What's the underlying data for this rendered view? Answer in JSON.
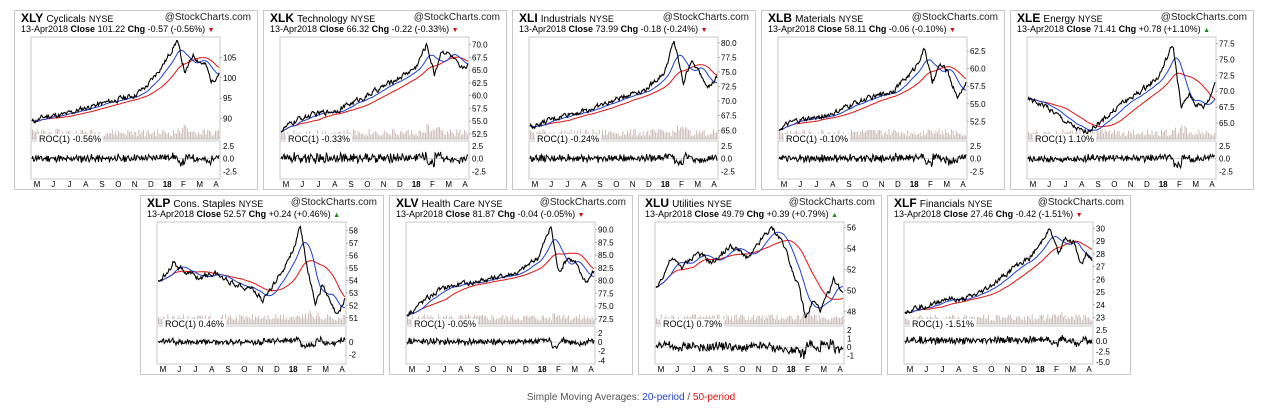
{
  "footer": {
    "prefix": "Simple Moving Averages:",
    "period20": "20-period",
    "sep": "/",
    "period50": "50-period"
  },
  "colors": {
    "price": "#000000",
    "sma20": "#1f3fd0",
    "sma50": "#e01010",
    "volume": "#c8b4b4",
    "up": "#1a8a1a",
    "down": "#cc1111"
  },
  "chart_data": [
    {
      "type": "line",
      "symbol": "XLY",
      "name": "Cyclicals",
      "exchange": "NYSE",
      "source": "@StockCharts.com",
      "date": "13-Apr2018",
      "close_label": "Close",
      "close": "101.22",
      "chg_label": "Chg",
      "chg": "-0.57 (-0.56%)",
      "direction": "down",
      "ylim": [
        85,
        110
      ],
      "yticks": [
        "105",
        "100",
        "95",
        "90"
      ],
      "roc_label": "ROC(1) -0.56%",
      "roc_ylim": [
        -4,
        3.5
      ],
      "roc_ticks": [
        "2.5",
        "0.0",
        "-2.5"
      ],
      "xlabels": [
        "M",
        "J",
        "J",
        "A",
        "S",
        "O",
        "N",
        "D",
        "18",
        "F",
        "M",
        "A"
      ],
      "series_keypoints": [
        [
          0,
          89.2
        ],
        [
          0.08,
          90.6
        ],
        [
          0.18,
          91.0
        ],
        [
          0.28,
          92.6
        ],
        [
          0.42,
          94.2
        ],
        [
          0.55,
          95.8
        ],
        [
          0.62,
          98.2
        ],
        [
          0.72,
          104.5
        ],
        [
          0.775,
          109.2
        ],
        [
          0.82,
          101.0
        ],
        [
          0.86,
          105.7
        ],
        [
          0.9,
          103.9
        ],
        [
          0.93,
          103.0
        ],
        [
          0.96,
          99.0
        ],
        [
          1,
          101.2
        ]
      ]
    },
    {
      "type": "line",
      "symbol": "XLK",
      "name": "Technology",
      "exchange": "NYSE",
      "source": "@StockCharts.com",
      "date": "13-Apr2018",
      "close_label": "Close",
      "close": "66.32",
      "chg_label": "Chg",
      "chg": "-0.22 (-0.33%)",
      "direction": "down",
      "ylim": [
        51.5,
        71.5
      ],
      "yticks": [
        "70.0",
        "67.5",
        "65.0",
        "62.5",
        "60.0",
        "57.5",
        "55.0",
        "52.5"
      ],
      "roc_label": "ROC(1) -0.33%",
      "roc_ylim": [
        -4,
        3.5
      ],
      "roc_ticks": [
        "2.5",
        "0.0",
        "-2.5"
      ],
      "xlabels": [
        "M",
        "J",
        "J",
        "A",
        "S",
        "O",
        "N",
        "D",
        "18",
        "F",
        "M",
        "A"
      ],
      "series_keypoints": [
        [
          0,
          53.2
        ],
        [
          0.1,
          55.5
        ],
        [
          0.2,
          56.5
        ],
        [
          0.3,
          57.2
        ],
        [
          0.45,
          59.8
        ],
        [
          0.55,
          61.8
        ],
        [
          0.62,
          63.3
        ],
        [
          0.72,
          65.5
        ],
        [
          0.78,
          70.1
        ],
        [
          0.82,
          64.2
        ],
        [
          0.86,
          69.0
        ],
        [
          0.9,
          68.1
        ],
        [
          0.93,
          66.8
        ],
        [
          0.96,
          65.0
        ],
        [
          1,
          66.3
        ]
      ]
    },
    {
      "type": "line",
      "symbol": "XLI",
      "name": "Industrials",
      "exchange": "NYSE",
      "source": "@StockCharts.com",
      "date": "13-Apr2018",
      "close_label": "Close",
      "close": "73.99",
      "chg_label": "Chg",
      "chg": "-0.18 (-0.24%)",
      "direction": "down",
      "ylim": [
        63.5,
        81
      ],
      "yticks": [
        "80.0",
        "77.5",
        "75.0",
        "72.5",
        "70.0",
        "67.5",
        "65.0"
      ],
      "roc_label": "ROC(1) -0.24%",
      "roc_ylim": [
        -4,
        3.5
      ],
      "roc_ticks": [
        "2.5",
        "0.0",
        "-2.5"
      ],
      "xlabels": [
        "M",
        "J",
        "J",
        "A",
        "S",
        "O",
        "N",
        "D",
        "18",
        "F",
        "M",
        "A"
      ],
      "series_keypoints": [
        [
          0,
          65.6
        ],
        [
          0.1,
          66.6
        ],
        [
          0.2,
          67.8
        ],
        [
          0.3,
          68.4
        ],
        [
          0.42,
          69.7
        ],
        [
          0.55,
          71.5
        ],
        [
          0.62,
          72.0
        ],
        [
          0.72,
          75.0
        ],
        [
          0.77,
          80.3
        ],
        [
          0.82,
          73.1
        ],
        [
          0.86,
          77.0
        ],
        [
          0.9,
          75.1
        ],
        [
          0.93,
          73.8
        ],
        [
          0.96,
          72.6
        ],
        [
          1,
          74.0
        ]
      ]
    },
    {
      "type": "line",
      "symbol": "XLB",
      "name": "Materials",
      "exchange": "NYSE",
      "source": "@StockCharts.com",
      "date": "13-Apr2018",
      "close_label": "Close",
      "close": "58.11",
      "chg_label": "Chg",
      "chg": "-0.06 (-0.10%)",
      "direction": "down",
      "ylim": [
        50,
        64.5
      ],
      "yticks": [
        "62.5",
        "60.0",
        "57.5",
        "55.0",
        "52.5"
      ],
      "roc_label": "ROC(1) -0.10%",
      "roc_ylim": [
        -4,
        3.5
      ],
      "roc_ticks": [
        "2.5",
        "0.0",
        "-2.5"
      ],
      "xlabels": [
        "M",
        "J",
        "J",
        "A",
        "S",
        "O",
        "N",
        "D",
        "18",
        "F",
        "M",
        "A"
      ],
      "series_keypoints": [
        [
          0,
          51.5
        ],
        [
          0.1,
          52.6
        ],
        [
          0.2,
          53.0
        ],
        [
          0.3,
          53.7
        ],
        [
          0.42,
          55.3
        ],
        [
          0.55,
          56.3
        ],
        [
          0.62,
          57.1
        ],
        [
          0.72,
          59.8
        ],
        [
          0.78,
          62.9
        ],
        [
          0.82,
          57.8
        ],
        [
          0.86,
          60.6
        ],
        [
          0.9,
          59.6
        ],
        [
          0.93,
          57.5
        ],
        [
          0.96,
          55.9
        ],
        [
          1,
          58.1
        ]
      ]
    },
    {
      "type": "line",
      "symbol": "XLE",
      "name": "Energy",
      "exchange": "NYSE",
      "source": "@StockCharts.com",
      "date": "13-Apr2018",
      "close_label": "Close",
      "close": "71.41",
      "chg_label": "Chg",
      "chg": "+0.78 (+1.10%)",
      "direction": "up",
      "ylim": [
        62.5,
        78.5
      ],
      "yticks": [
        "77.5",
        "75.0",
        "72.5",
        "70.0",
        "67.5",
        "65.0"
      ],
      "roc_label": "ROC(1) 1.10%",
      "roc_ylim": [
        -4,
        3.5
      ],
      "roc_ticks": [
        "2.5",
        "0.0",
        "-2.5"
      ],
      "xlabels": [
        "M",
        "J",
        "J",
        "A",
        "S",
        "O",
        "N",
        "D",
        "18",
        "F",
        "M",
        "A"
      ],
      "series_keypoints": [
        [
          0,
          68.7
        ],
        [
          0.1,
          67.6
        ],
        [
          0.2,
          65.2
        ],
        [
          0.3,
          63.4
        ],
        [
          0.4,
          65.4
        ],
        [
          0.5,
          68.1
        ],
        [
          0.6,
          69.9
        ],
        [
          0.7,
          72.3
        ],
        [
          0.775,
          77.3
        ],
        [
          0.82,
          67.2
        ],
        [
          0.86,
          69.5
        ],
        [
          0.9,
          67.9
        ],
        [
          0.94,
          67.5
        ],
        [
          0.97,
          68.8
        ],
        [
          1,
          71.4
        ]
      ]
    },
    {
      "type": "line",
      "symbol": "XLP",
      "name": "Cons. Staples",
      "exchange": "NYSE",
      "source": "@StockCharts.com",
      "date": "13-Apr2018",
      "close_label": "Close",
      "close": "52.57",
      "chg_label": "Chg",
      "chg": "+0.24 (+0.46%)",
      "direction": "up",
      "ylim": [
        50.5,
        58.7
      ],
      "yticks": [
        "58",
        "57",
        "56",
        "55",
        "54",
        "53",
        "52",
        "51"
      ],
      "roc_label": "ROC(1) 0.46%",
      "roc_ylim": [
        -3.5,
        2.5
      ],
      "roc_ticks": [
        "0",
        "-2"
      ],
      "xlabels": [
        "M",
        "J",
        "J",
        "A",
        "S",
        "O",
        "N",
        "D",
        "18",
        "F",
        "M",
        "A"
      ],
      "series_keypoints": [
        [
          0,
          53.8
        ],
        [
          0.08,
          55.4
        ],
        [
          0.14,
          54.8
        ],
        [
          0.22,
          54.2
        ],
        [
          0.3,
          54.6
        ],
        [
          0.4,
          53.8
        ],
        [
          0.5,
          53.4
        ],
        [
          0.56,
          52.4
        ],
        [
          0.6,
          53.2
        ],
        [
          0.68,
          55.2
        ],
        [
          0.73,
          56.8
        ],
        [
          0.76,
          58.2
        ],
        [
          0.8,
          55.0
        ],
        [
          0.84,
          52.2
        ],
        [
          0.88,
          53.6
        ],
        [
          0.93,
          51.9
        ],
        [
          0.96,
          51.1
        ],
        [
          1,
          52.6
        ]
      ]
    },
    {
      "type": "line",
      "symbol": "XLV",
      "name": "Health Care",
      "exchange": "NYSE",
      "source": "@StockCharts.com",
      "date": "13-Apr2018",
      "close_label": "Close",
      "close": "81.87",
      "chg_label": "Chg",
      "chg": "-0.04 (-0.05%)",
      "direction": "down",
      "ylim": [
        71.5,
        91.5
      ],
      "yticks": [
        "90.0",
        "87.5",
        "85.0",
        "82.5",
        "80.0",
        "77.5",
        "75.0",
        "72.5"
      ],
      "roc_label": "ROC(1) -0.05%",
      "roc_ylim": [
        -4.8,
        3.5
      ],
      "roc_ticks": [
        "2",
        "0",
        "-2",
        "-4"
      ],
      "xlabels": [
        "M",
        "J",
        "J",
        "A",
        "S",
        "O",
        "N",
        "D",
        "18",
        "F",
        "M",
        "A"
      ],
      "series_keypoints": [
        [
          0,
          73.4
        ],
        [
          0.08,
          75.8
        ],
        [
          0.15,
          77.6
        ],
        [
          0.22,
          78.9
        ],
        [
          0.3,
          79.3
        ],
        [
          0.4,
          80.1
        ],
        [
          0.5,
          80.8
        ],
        [
          0.6,
          81.7
        ],
        [
          0.7,
          84.5
        ],
        [
          0.77,
          90.6
        ],
        [
          0.81,
          81.6
        ],
        [
          0.86,
          84.6
        ],
        [
          0.9,
          83.5
        ],
        [
          0.93,
          81.1
        ],
        [
          0.96,
          79.8
        ],
        [
          1,
          81.9
        ]
      ]
    },
    {
      "type": "line",
      "symbol": "XLU",
      "name": "Utilities",
      "exchange": "NYSE",
      "source": "@StockCharts.com",
      "date": "13-Apr2018",
      "close_label": "Close",
      "close": "49.79",
      "chg_label": "Chg",
      "chg": "+0.39 (+0.79%)",
      "direction": "up",
      "ylim": [
        46.8,
        56.5
      ],
      "yticks": [
        "56",
        "54",
        "52",
        "50",
        "48"
      ],
      "roc_label": "ROC(1) 0.79%",
      "roc_ylim": [
        -2,
        2.5
      ],
      "roc_ticks": [
        "2",
        "1",
        "0",
        "-1"
      ],
      "xlabels": [
        "M",
        "J",
        "J",
        "A",
        "S",
        "O",
        "N",
        "D",
        "18",
        "F",
        "M",
        "A"
      ],
      "series_keypoints": [
        [
          0,
          50.1
        ],
        [
          0.08,
          53.0
        ],
        [
          0.14,
          52.2
        ],
        [
          0.22,
          53.6
        ],
        [
          0.3,
          52.6
        ],
        [
          0.4,
          54.2
        ],
        [
          0.5,
          53.1
        ],
        [
          0.58,
          55.2
        ],
        [
          0.62,
          55.9
        ],
        [
          0.68,
          54.6
        ],
        [
          0.73,
          52.0
        ],
        [
          0.77,
          49.9
        ],
        [
          0.8,
          47.3
        ],
        [
          0.84,
          49.0
        ],
        [
          0.88,
          48.1
        ],
        [
          0.92,
          49.6
        ],
        [
          0.95,
          51.0
        ],
        [
          1,
          49.8
        ]
      ]
    },
    {
      "type": "line",
      "symbol": "XLF",
      "name": "Financials",
      "exchange": "NYSE",
      "source": "@StockCharts.com",
      "date": "13-Apr2018",
      "close_label": "Close",
      "close": "27.46",
      "chg_label": "Chg",
      "chg": "-0.42 (-1.51%)",
      "direction": "down",
      "ylim": [
        22.5,
        30.5
      ],
      "yticks": [
        "30",
        "29",
        "28",
        "27",
        "26",
        "25",
        "24",
        "23"
      ],
      "roc_label": "ROC(1) -1.51%",
      "roc_ylim": [
        -5.5,
        3.5
      ],
      "roc_ticks": [
        "2.5",
        "0.0",
        "-2.5",
        "-5.0"
      ],
      "xlabels": [
        "M",
        "J",
        "J",
        "A",
        "S",
        "O",
        "N",
        "D",
        "18",
        "F",
        "M",
        "A"
      ],
      "series_keypoints": [
        [
          0,
          23.5
        ],
        [
          0.08,
          23.9
        ],
        [
          0.14,
          24.0
        ],
        [
          0.22,
          24.5
        ],
        [
          0.3,
          24.3
        ],
        [
          0.4,
          24.9
        ],
        [
          0.5,
          25.9
        ],
        [
          0.58,
          26.9
        ],
        [
          0.66,
          27.6
        ],
        [
          0.72,
          28.6
        ],
        [
          0.77,
          30.1
        ],
        [
          0.82,
          28.0
        ],
        [
          0.86,
          29.4
        ],
        [
          0.9,
          28.9
        ],
        [
          0.94,
          27.2
        ],
        [
          0.97,
          27.9
        ],
        [
          1,
          27.5
        ]
      ]
    }
  ]
}
